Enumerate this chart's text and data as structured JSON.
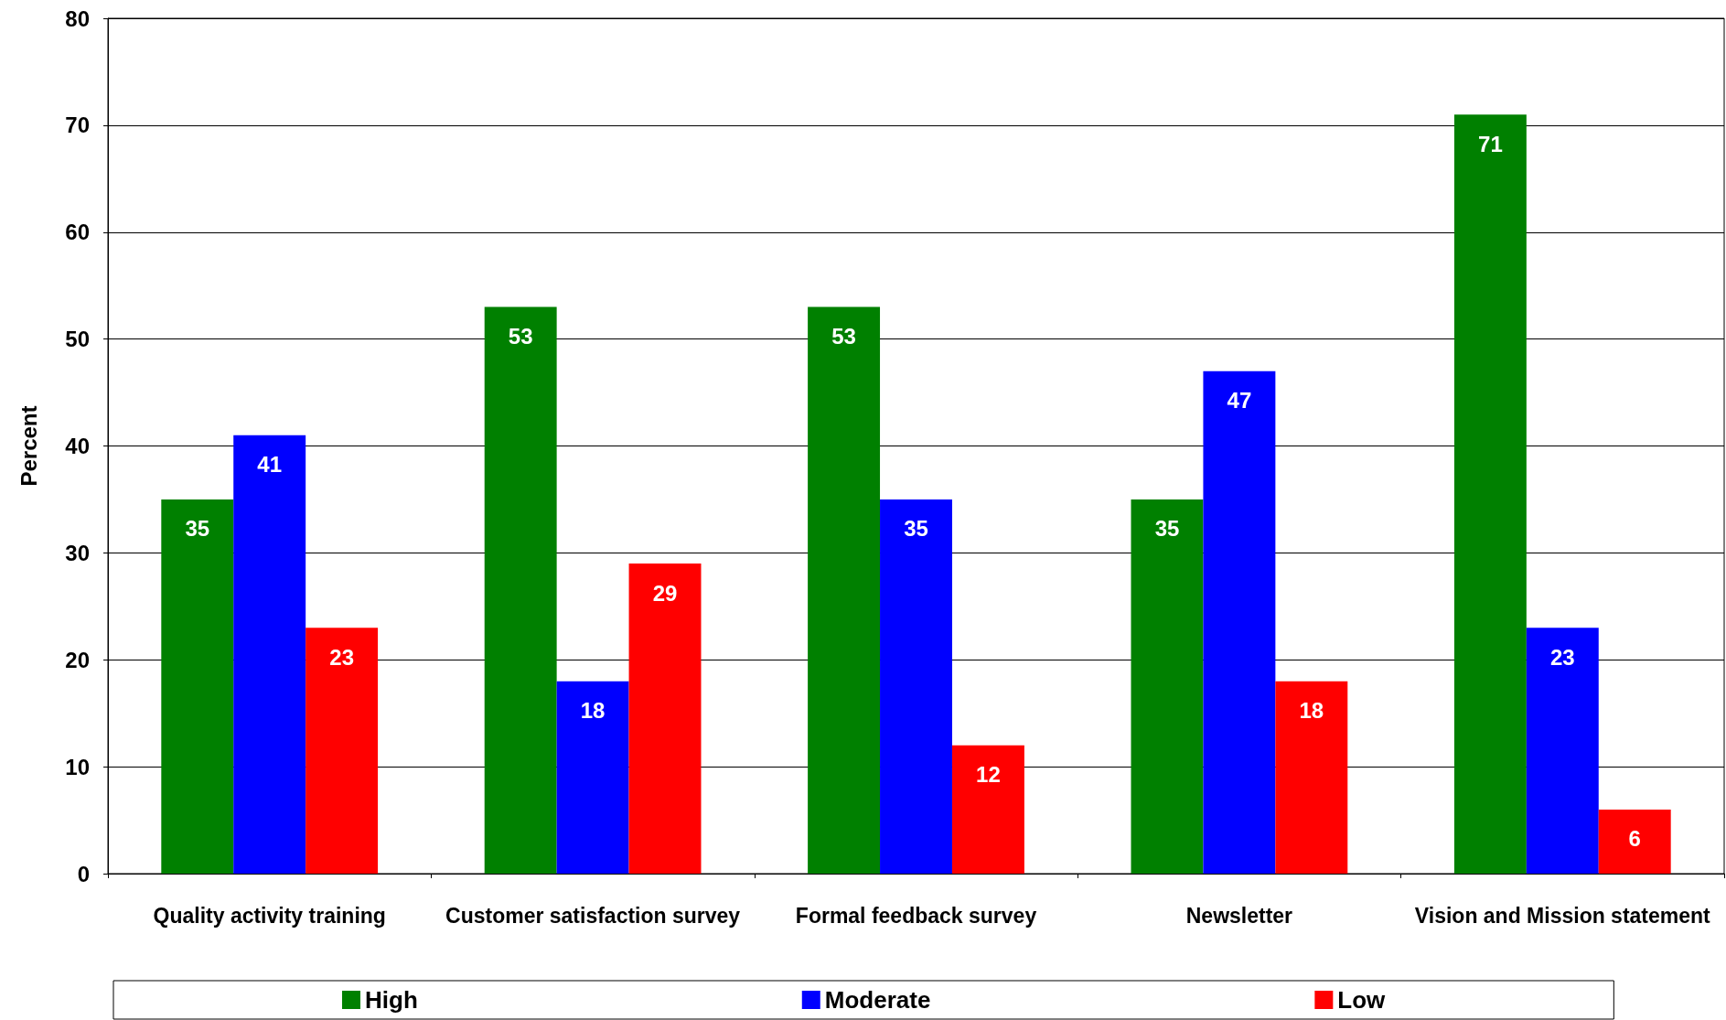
{
  "chart_data": {
    "type": "bar",
    "ylabel": "Percent",
    "categories": [
      "Quality activity training",
      "Customer satisfaction survey",
      "Formal feedback survey",
      "Newsletter",
      "Vision and Mission statement"
    ],
    "series": [
      {
        "name": "High",
        "color": "#008000",
        "values": [
          35,
          53,
          53,
          35,
          71
        ]
      },
      {
        "name": "Moderate",
        "color": "#0000ff",
        "values": [
          41,
          18,
          35,
          47,
          23
        ]
      },
      {
        "name": "Low",
        "color": "#ff0000",
        "values": [
          23,
          29,
          12,
          18,
          6
        ]
      }
    ],
    "ylim": [
      0,
      80
    ],
    "yticks": [
      0,
      10,
      20,
      30,
      40,
      50,
      60,
      70,
      80
    ],
    "grid": "y",
    "legend": "bottom",
    "data_labels": true
  }
}
